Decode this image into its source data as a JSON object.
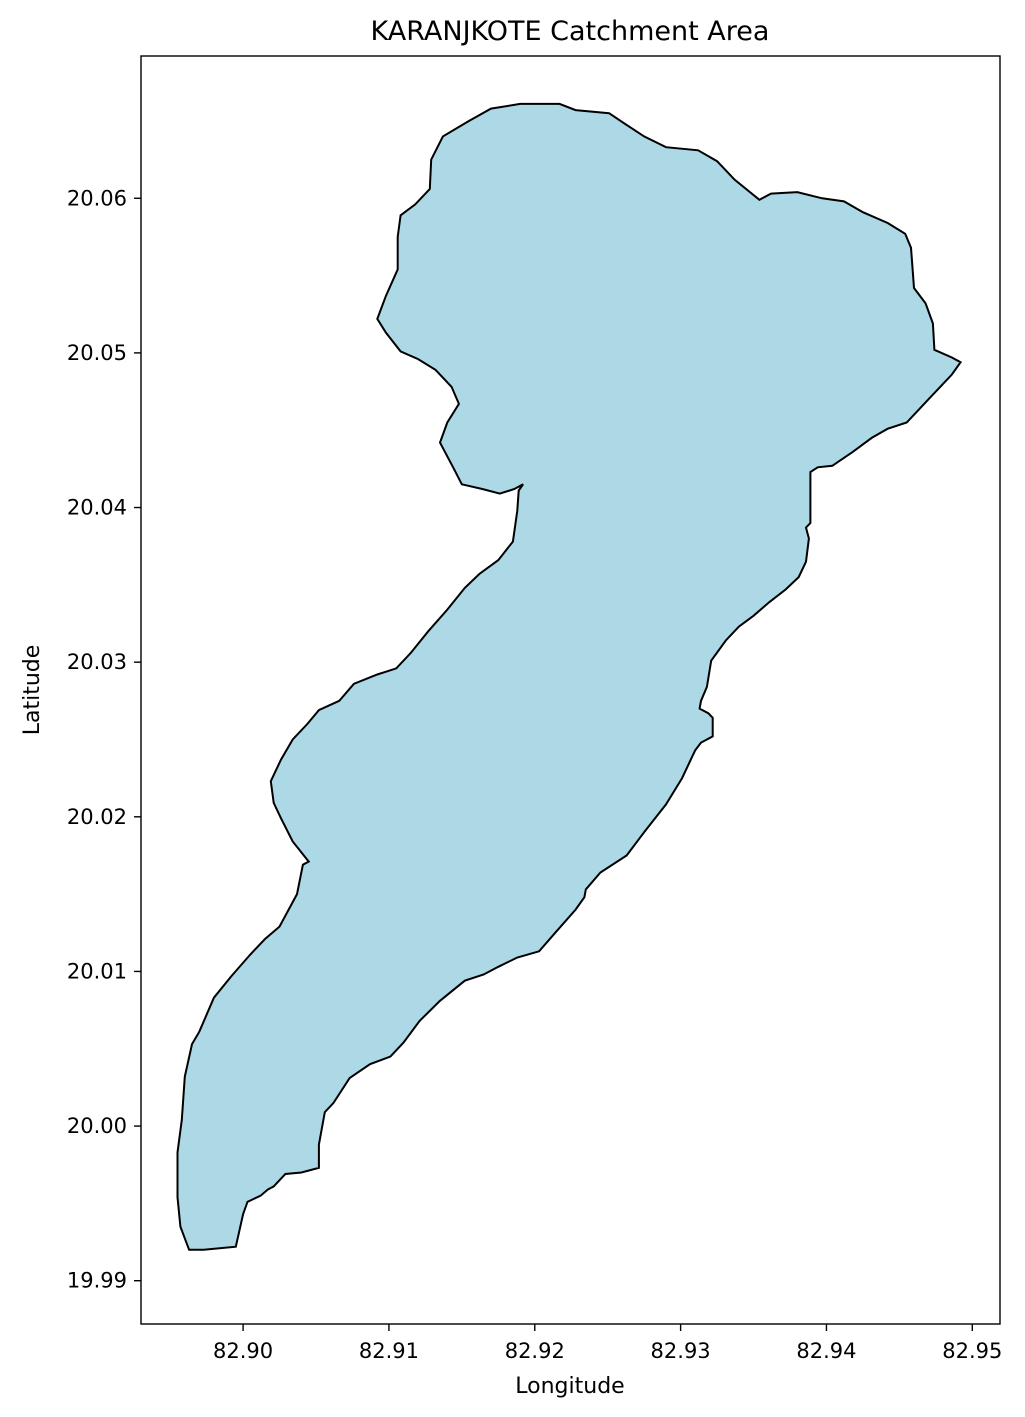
{
  "chart_data": {
    "type": "map",
    "title": "KARANJKOTE Catchment Area",
    "xlabel": "Longitude",
    "ylabel": "Latitude",
    "xlim": [
      82.893,
      82.9519
    ],
    "ylim": [
      19.9872,
      20.0692
    ],
    "x_ticks": [
      {
        "value": 82.9,
        "label": "82.90"
      },
      {
        "value": 82.91,
        "label": "82.91"
      },
      {
        "value": 82.92,
        "label": "82.92"
      },
      {
        "value": 82.93,
        "label": "82.93"
      },
      {
        "value": 82.94,
        "label": "82.94"
      },
      {
        "value": 82.95,
        "label": "82.95"
      }
    ],
    "y_ticks": [
      {
        "value": 19.99,
        "label": "19.99"
      },
      {
        "value": 20.0,
        "label": "20.00"
      },
      {
        "value": 20.01,
        "label": "20.01"
      },
      {
        "value": 20.02,
        "label": "20.02"
      },
      {
        "value": 20.03,
        "label": "20.03"
      },
      {
        "value": 20.04,
        "label": "20.04"
      },
      {
        "value": 20.05,
        "label": "20.05"
      },
      {
        "value": 20.06,
        "label": "20.06"
      }
    ],
    "polygon_fill": "#add8e6",
    "polygon_stroke": "#000000",
    "grid": false,
    "polygon": [
      [
        82.919,
        20.0661
      ],
      [
        82.9217,
        20.0661
      ],
      [
        82.9228,
        20.0657
      ],
      [
        82.9251,
        20.0655
      ],
      [
        82.9262,
        20.0648
      ],
      [
        82.9275,
        20.064
      ],
      [
        82.929,
        20.0633
      ],
      [
        82.9312,
        20.0631
      ],
      [
        82.9325,
        20.0624
      ],
      [
        82.9337,
        20.0612
      ],
      [
        82.9354,
        20.0599
      ],
      [
        82.9362,
        20.0603
      ],
      [
        82.938,
        20.0604
      ],
      [
        82.9397,
        20.06
      ],
      [
        82.9412,
        20.0598
      ],
      [
        82.9425,
        20.0591
      ],
      [
        82.9442,
        20.0584
      ],
      [
        82.9454,
        20.0577
      ],
      [
        82.9458,
        20.0568
      ],
      [
        82.946,
        20.0542
      ],
      [
        82.9468,
        20.0532
      ],
      [
        82.9473,
        20.0519
      ],
      [
        82.9474,
        20.0502
      ],
      [
        82.9486,
        20.0497
      ],
      [
        82.9492,
        20.0494
      ],
      [
        82.9486,
        20.0486
      ],
      [
        82.9471,
        20.0471
      ],
      [
        82.9455,
        20.0455
      ],
      [
        82.9442,
        20.0451
      ],
      [
        82.9431,
        20.0445
      ],
      [
        82.9418,
        20.0436
      ],
      [
        82.9404,
        20.0427
      ],
      [
        82.9394,
        20.0426
      ],
      [
        82.9389,
        20.0423
      ],
      [
        82.9389,
        20.039
      ],
      [
        82.9386,
        20.0387
      ],
      [
        82.9388,
        20.038
      ],
      [
        82.9386,
        20.0365
      ],
      [
        82.9381,
        20.0355
      ],
      [
        82.9372,
        20.0347
      ],
      [
        82.9361,
        20.0339
      ],
      [
        82.935,
        20.033
      ],
      [
        82.934,
        20.0323
      ],
      [
        82.9331,
        20.0314
      ],
      [
        82.9321,
        20.0301
      ],
      [
        82.9318,
        20.0284
      ],
      [
        82.9314,
        20.0275
      ],
      [
        82.9313,
        20.027
      ],
      [
        82.9319,
        20.0267
      ],
      [
        82.9322,
        20.0264
      ],
      [
        82.9322,
        20.0252
      ],
      [
        82.9314,
        20.0248
      ],
      [
        82.931,
        20.0243
      ],
      [
        82.9307,
        20.0237
      ],
      [
        82.9301,
        20.0225
      ],
      [
        82.929,
        20.0208
      ],
      [
        82.9275,
        20.019
      ],
      [
        82.9263,
        20.0175
      ],
      [
        82.9245,
        20.0164
      ],
      [
        82.9235,
        20.0153
      ],
      [
        82.9234,
        20.0148
      ],
      [
        82.9228,
        20.014
      ],
      [
        82.9215,
        20.0126
      ],
      [
        82.9203,
        20.0113
      ],
      [
        82.9188,
        20.0109
      ],
      [
        82.9175,
        20.0103
      ],
      [
        82.9165,
        20.0098
      ],
      [
        82.9152,
        20.0094
      ],
      [
        82.9135,
        20.0081
      ],
      [
        82.9121,
        20.0068
      ],
      [
        82.911,
        20.0054
      ],
      [
        82.9101,
        20.0045
      ],
      [
        82.9087,
        20.004
      ],
      [
        82.9073,
        20.0031
      ],
      [
        82.9062,
        20.0015
      ],
      [
        82.9056,
        20.0009
      ],
      [
        82.9052,
        19.9988
      ],
      [
        82.9052,
        19.9973
      ],
      [
        82.904,
        19.997
      ],
      [
        82.9029,
        19.9969
      ],
      [
        82.9021,
        19.9961
      ],
      [
        82.9017,
        19.9959
      ],
      [
        82.9012,
        19.9955
      ],
      [
        82.9003,
        19.9951
      ],
      [
        82.9,
        19.9943
      ],
      [
        82.8995,
        19.9922
      ],
      [
        82.8973,
        19.992
      ],
      [
        82.8963,
        19.992
      ],
      [
        82.8957,
        19.9935
      ],
      [
        82.8955,
        19.9954
      ],
      [
        82.8955,
        19.9983
      ],
      [
        82.8958,
        20.0004
      ],
      [
        82.896,
        20.0032
      ],
      [
        82.8965,
        20.0053
      ],
      [
        82.897,
        20.0061
      ],
      [
        82.898,
        20.0083
      ],
      [
        82.8992,
        20.0097
      ],
      [
        82.9005,
        20.0111
      ],
      [
        82.9015,
        20.0121
      ],
      [
        82.9025,
        20.0129
      ],
      [
        82.9037,
        20.015
      ],
      [
        82.9041,
        20.0169
      ],
      [
        82.9045,
        20.0171
      ],
      [
        82.9034,
        20.0184
      ],
      [
        82.9026,
        20.0199
      ],
      [
        82.9021,
        20.0209
      ],
      [
        82.9019,
        20.0223
      ],
      [
        82.9026,
        20.0237
      ],
      [
        82.9034,
        20.025
      ],
      [
        82.9044,
        20.026
      ],
      [
        82.9052,
        20.0269
      ],
      [
        82.9066,
        20.0275
      ],
      [
        82.9076,
        20.0286
      ],
      [
        82.9092,
        20.0292
      ],
      [
        82.9105,
        20.0296
      ],
      [
        82.9115,
        20.0306
      ],
      [
        82.9127,
        20.032
      ],
      [
        82.914,
        20.0334
      ],
      [
        82.9152,
        20.0348
      ],
      [
        82.9162,
        20.0357
      ],
      [
        82.9175,
        20.0366
      ],
      [
        82.9185,
        20.0378
      ],
      [
        82.9188,
        20.0398
      ],
      [
        82.9189,
        20.0411
      ],
      [
        82.9192,
        20.0415
      ],
      [
        82.9186,
        20.0412
      ],
      [
        82.9176,
        20.0409
      ],
      [
        82.9164,
        20.0412
      ],
      [
        82.915,
        20.0415
      ],
      [
        82.9144,
        20.0426
      ],
      [
        82.9135,
        20.0442
      ],
      [
        82.914,
        20.0455
      ],
      [
        82.9148,
        20.0467
      ],
      [
        82.9143,
        20.0478
      ],
      [
        82.9132,
        20.0489
      ],
      [
        82.912,
        20.0496
      ],
      [
        82.9108,
        20.0501
      ],
      [
        82.9098,
        20.0513
      ],
      [
        82.9092,
        20.0522
      ],
      [
        82.9098,
        20.0537
      ],
      [
        82.9106,
        20.0554
      ],
      [
        82.9106,
        20.0575
      ],
      [
        82.9108,
        20.0589
      ],
      [
        82.9118,
        20.0596
      ],
      [
        82.9128,
        20.0606
      ],
      [
        82.9129,
        20.0625
      ],
      [
        82.9137,
        20.064
      ],
      [
        82.9155,
        20.065
      ],
      [
        82.917,
        20.0658
      ],
      [
        82.919,
        20.0661
      ]
    ]
  }
}
